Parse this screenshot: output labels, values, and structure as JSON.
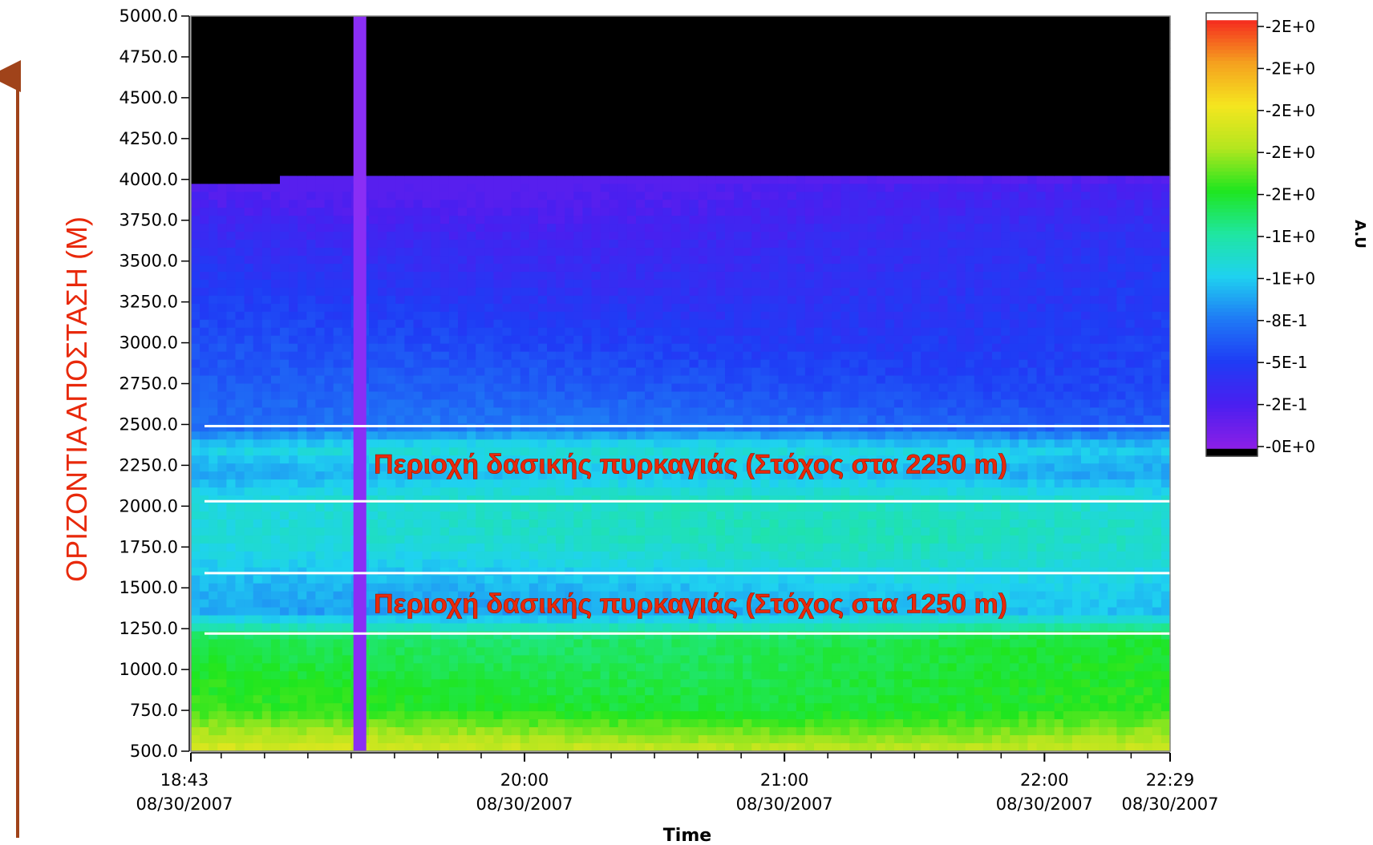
{
  "chart_data": {
    "type": "heatmap",
    "title": "",
    "xlabel": "Time",
    "ylabel": "ΟΡΙΖΟΝΤΙΑ ΑΠΟΣΤΑΣΗ (M)",
    "colorbar_label": "A.U",
    "y_range": [
      500,
      5000
    ],
    "y_ticks": [
      "5000.0",
      "4750.0",
      "4500.0",
      "4250.0",
      "4000.0",
      "3750.0",
      "3500.0",
      "3250.0",
      "3000.0",
      "2750.0",
      "2500.0",
      "2250.0",
      "2000.0",
      "1750.0",
      "1500.0",
      "1250.0",
      "1000.0",
      "750.0",
      "500.0"
    ],
    "x_range": [
      "18:43 08/30/2007",
      "22:29 08/30/2007"
    ],
    "x_ticks": [
      {
        "time": "18:43",
        "date": "08/30/2007"
      },
      {
        "time": "20:00",
        "date": "08/30/2007"
      },
      {
        "time": "21:00",
        "date": "08/30/2007"
      },
      {
        "time": "22:00",
        "date": "08/30/2007"
      },
      {
        "time": "22:29",
        "date": "08/30/2007"
      }
    ],
    "colorbar_ticks": [
      "-2E+0",
      "-2E+0",
      "-2E+0",
      "-2E+0",
      "-2E+0",
      "-1E+0",
      "-1E+0",
      "-8E-1",
      "-5E-1",
      "-2E-1",
      "-0E+0"
    ],
    "colorscale": [
      "#000000",
      "#8a1fe6",
      "#4a1ff0",
      "#1f3cf5",
      "#1f7af5",
      "#1fd2f0",
      "#1fe6a0",
      "#1fe61f",
      "#b4e61f",
      "#f5e61f",
      "#f5a01f",
      "#f52a1f",
      "#ffffff"
    ],
    "vertical_band_time": "19:22",
    "vertical_band_color": "#8a2ef5",
    "highlight_bands": [
      {
        "label": "Περιοχή δασικής πυρκαγιάς (Στόχος στα 2250 m)",
        "y_from": 2030,
        "y_to": 2490
      },
      {
        "label": "Περιοχή δασικής πυρκαγιάς (Στόχος στα 1250 m)",
        "y_from": 1220,
        "y_to": 1590
      }
    ],
    "intensity_profile": [
      {
        "range_m": 500,
        "level": 0.74
      },
      {
        "range_m": 750,
        "level": 0.6
      },
      {
        "range_m": 1000,
        "level": 0.58
      },
      {
        "range_m": 1200,
        "level": 0.56
      },
      {
        "range_m": 1350,
        "level": 0.36
      },
      {
        "range_m": 1500,
        "level": 0.38
      },
      {
        "range_m": 1650,
        "level": 0.42
      },
      {
        "range_m": 1800,
        "level": 0.45
      },
      {
        "range_m": 2050,
        "level": 0.44
      },
      {
        "range_m": 2200,
        "level": 0.36
      },
      {
        "range_m": 2350,
        "level": 0.42
      },
      {
        "range_m": 2480,
        "level": 0.28
      },
      {
        "range_m": 2700,
        "level": 0.24
      },
      {
        "range_m": 3100,
        "level": 0.2
      },
      {
        "range_m": 3600,
        "level": 0.15
      },
      {
        "range_m": 3950,
        "level": 0.09
      },
      {
        "range_m": 4100,
        "level": 0.0
      },
      {
        "range_m": 5000,
        "level": 0.0
      }
    ],
    "cloud_top_m": 4000
  }
}
